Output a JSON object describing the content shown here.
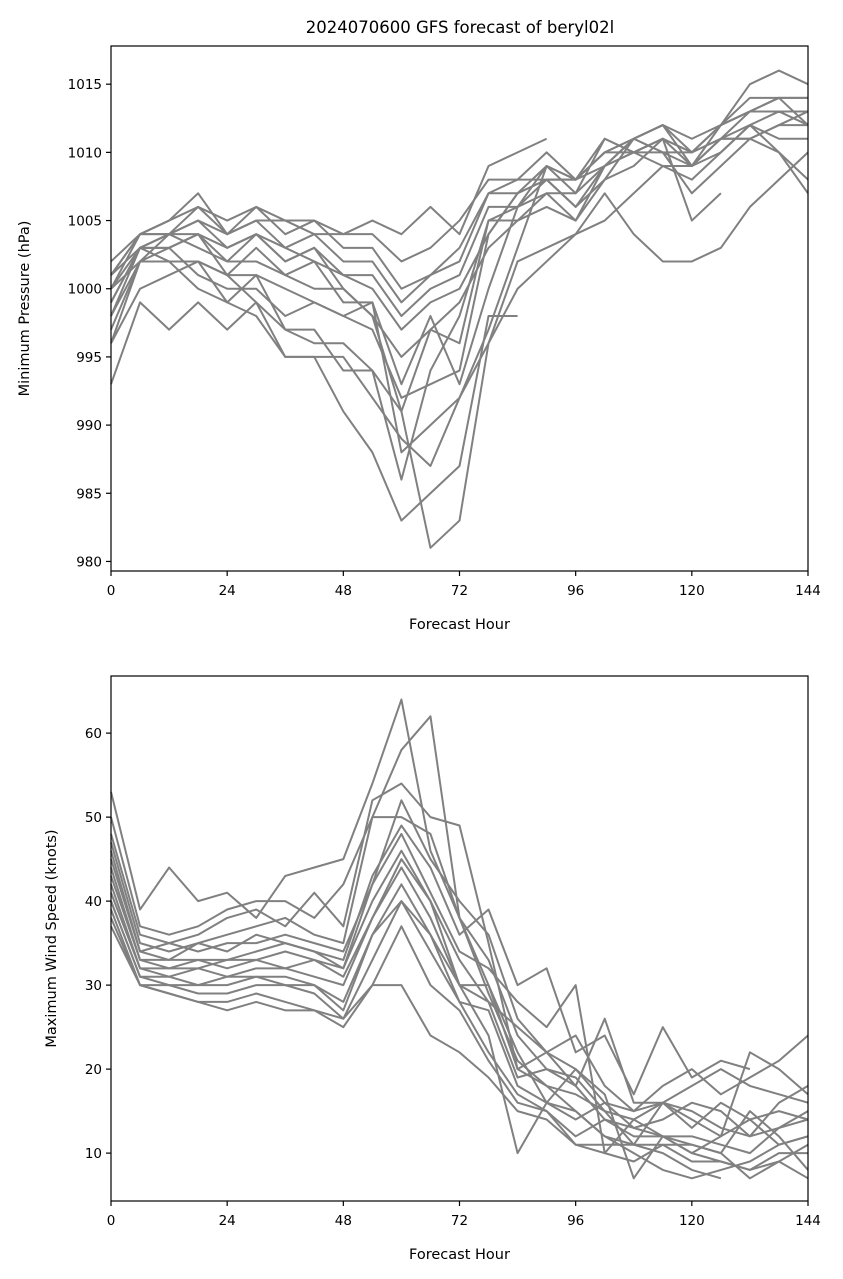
{
  "chart_data": [
    {
      "type": "line",
      "title": "2024070600 GFS forecast of beryl02l",
      "xlabel": "Forecast Hour",
      "ylabel": "Minimum Pressure (hPa)",
      "xlim": [
        0,
        144
      ],
      "ylim": [
        979.3,
        1017.8
      ],
      "xticks": [
        0,
        24,
        48,
        72,
        96,
        120,
        144
      ],
      "yticks": [
        980,
        985,
        990,
        995,
        1000,
        1005,
        1010,
        1015
      ],
      "line_color": "#808080",
      "grid": false,
      "x": [
        0,
        6,
        12,
        18,
        24,
        30,
        36,
        42,
        48,
        54,
        60,
        66,
        72,
        78,
        84,
        90,
        96,
        102,
        108,
        114,
        120,
        126,
        132,
        138,
        144
      ],
      "series": [
        {
          "values": [
            993,
            999,
            997,
            999,
            997,
            999,
            995,
            995,
            991,
            988,
            983,
            985,
            987,
            998,
            998,
            null,
            null,
            null,
            null,
            null,
            null,
            null,
            null,
            null,
            null
          ]
        },
        {
          "values": [
            996,
            1000,
            1001,
            1002,
            1001,
            999,
            997,
            997,
            994,
            994,
            991,
            981,
            983,
            996,
            1002,
            1003,
            1004,
            1005,
            1007,
            1009,
            1009,
            1011,
            1012,
            1011,
            1011
          ]
        },
        {
          "values": [
            996,
            1002,
            1002,
            1000,
            999,
            998,
            995,
            995,
            995,
            992,
            989,
            987,
            992,
            997,
            1003,
            1009,
            1008,
            1010,
            1011,
            1012,
            1010,
            1012,
            1015,
            1016,
            1015
          ]
        },
        {
          "values": [
            997,
            1002,
            1002,
            1002,
            999,
            1001,
            997,
            996,
            996,
            994,
            986,
            994,
            998,
            1005,
            1005,
            1006,
            1005,
            1008,
            1011,
            1012,
            1011,
            1012,
            1013,
            1014,
            1014
          ]
        },
        {
          "values": [
            998,
            1002,
            1003,
            1001,
            1000,
            1000,
            998,
            999,
            998,
            997,
            992,
            993,
            994,
            1004,
            1007,
            1009,
            1007,
            1011,
            1010,
            1011,
            1005,
            1007,
            null,
            null,
            null
          ]
        },
        {
          "values": [
            998,
            1003,
            1002,
            1002,
            1001,
            1001,
            1000,
            999,
            998,
            999,
            988,
            990,
            992,
            996,
            1000,
            1002,
            1004,
            1007,
            1004,
            1002,
            1002,
            1003,
            1006,
            1008,
            1010
          ]
        },
        {
          "values": [
            999,
            1003,
            1003,
            1004,
            1001,
            1003,
            1001,
            1002,
            999,
            999,
            993,
            998,
            993,
            1000,
            1006,
            1008,
            1006,
            1009,
            1010,
            1010,
            1010,
            1011,
            1011,
            1010,
            1008
          ]
        },
        {
          "values": [
            999,
            1003,
            1004,
            1003,
            1002,
            1002,
            1001,
            1000,
            1000,
            998,
            991,
            997,
            999,
            1003,
            1005,
            1007,
            1007,
            1009,
            1010,
            1009,
            1008,
            1010,
            1012,
            1010,
            1007
          ]
        },
        {
          "values": [
            1000,
            1003,
            1003,
            1004,
            1002,
            1004,
            1002,
            1003,
            1000,
            998,
            995,
            997,
            996,
            1005,
            1006,
            1007,
            1005,
            1009,
            1011,
            1010,
            1007,
            1009,
            1011,
            1012,
            1012
          ]
        },
        {
          "values": [
            1000,
            1002,
            1004,
            1004,
            1003,
            1004,
            1003,
            1002,
            1001,
            1000,
            997,
            999,
            1000,
            1004,
            1007,
            1008,
            1006,
            1008,
            1009,
            1011,
            1009,
            1010,
            1012,
            1013,
            1012
          ]
        },
        {
          "values": [
            1000,
            1004,
            1004,
            1005,
            1003,
            1004,
            1002,
            1003,
            1001,
            1001,
            998,
            1000,
            1001,
            1006,
            1006,
            1009,
            1008,
            1010,
            1010,
            1011,
            1010,
            1011,
            1011,
            1012,
            1013
          ]
        },
        {
          "values": [
            1001,
            1003,
            1004,
            1006,
            1004,
            1005,
            1003,
            1004,
            1002,
            1002,
            999,
            1001,
            1002,
            1007,
            1007,
            1008,
            1008,
            1009,
            1011,
            1012,
            1009,
            1011,
            1013,
            1013,
            1013
          ]
        },
        {
          "values": [
            1001,
            1004,
            1005,
            1007,
            1004,
            1006,
            1004,
            1005,
            1003,
            1003,
            1000,
            1001,
            1003,
            1007,
            1008,
            1010,
            1008,
            1011,
            1010,
            1011,
            1010,
            1012,
            1014,
            1014,
            1014
          ]
        },
        {
          "values": [
            1002,
            1004,
            1005,
            1006,
            1005,
            1006,
            1005,
            1005,
            1004,
            1005,
            1004,
            1006,
            1004,
            1009,
            1010,
            1011,
            null,
            null,
            null,
            null,
            null,
            null,
            null,
            null,
            null
          ]
        },
        {
          "values": [
            1001,
            1004,
            1004,
            1005,
            1004,
            1005,
            1005,
            1004,
            1004,
            1004,
            1002,
            1003,
            1005,
            1008,
            1008,
            1008,
            1008,
            1010,
            1011,
            1010,
            1009,
            1012,
            1013,
            1014,
            1012
          ]
        }
      ]
    },
    {
      "type": "line",
      "title": "",
      "xlabel": "Forecast Hour",
      "ylabel": "Maximum Wind Speed (knots)",
      "xlim": [
        0,
        144
      ],
      "ylim": [
        4.3,
        66.8
      ],
      "xticks": [
        0,
        24,
        48,
        72,
        96,
        120,
        144
      ],
      "yticks": [
        10,
        20,
        30,
        40,
        50,
        60
      ],
      "line_color": "#808080",
      "grid": false,
      "x": [
        0,
        6,
        12,
        18,
        24,
        30,
        36,
        42,
        48,
        54,
        60,
        66,
        72,
        78,
        84,
        90,
        96,
        102,
        108,
        114,
        120,
        126,
        132,
        138,
        144
      ],
      "series": [
        {
          "values": [
            53,
            39,
            44,
            40,
            41,
            38,
            43,
            44,
            45,
            54,
            64,
            46,
            38,
            30,
            22,
            16,
            15,
            12,
            11,
            10,
            8,
            7,
            null,
            null,
            null
          ]
        },
        {
          "values": [
            50,
            37,
            36,
            37,
            39,
            40,
            40,
            38,
            42,
            50,
            58,
            62,
            38,
            29,
            21,
            18,
            17,
            15,
            14,
            12,
            10,
            9,
            8,
            9,
            11
          ]
        },
        {
          "values": [
            48,
            36,
            35,
            36,
            38,
            39,
            37,
            41,
            37,
            52,
            54,
            50,
            49,
            35,
            20,
            18,
            15,
            12,
            10,
            8,
            7,
            8,
            9,
            11,
            12
          ]
        },
        {
          "values": [
            47,
            35,
            34,
            35,
            36,
            37,
            38,
            36,
            35,
            50,
            50,
            48,
            38,
            33,
            24,
            20,
            18,
            14,
            12,
            12,
            12,
            11,
            10,
            13,
            14
          ]
        },
        {
          "values": [
            46,
            34,
            35,
            34,
            35,
            35,
            36,
            35,
            34,
            42,
            52,
            45,
            40,
            36,
            26,
            22,
            20,
            16,
            13,
            14,
            16,
            15,
            12,
            16,
            18
          ]
        },
        {
          "values": [
            45,
            34,
            33,
            35,
            34,
            36,
            35,
            34,
            33,
            43,
            49,
            44,
            36,
            39,
            30,
            32,
            22,
            24,
            17,
            25,
            19,
            21,
            20,
            null,
            null
          ]
        },
        {
          "values": [
            44,
            33,
            33,
            33,
            33,
            34,
            35,
            34,
            32,
            42,
            48,
            41,
            34,
            32,
            28,
            25,
            30,
            10,
            14,
            16,
            18,
            20,
            18,
            17,
            16
          ]
        },
        {
          "values": [
            43,
            33,
            32,
            32,
            33,
            33,
            34,
            33,
            32,
            40,
            46,
            40,
            33,
            28,
            25,
            22,
            24,
            18,
            15,
            18,
            20,
            17,
            19,
            21,
            24
          ]
        },
        {
          "values": [
            42,
            32,
            32,
            33,
            32,
            33,
            32,
            33,
            31,
            38,
            45,
            40,
            30,
            30,
            20,
            22,
            18,
            26,
            16,
            16,
            15,
            13,
            12,
            13,
            15
          ]
        },
        {
          "values": [
            41,
            32,
            31,
            32,
            31,
            32,
            32,
            31,
            30,
            38,
            44,
            38,
            30,
            28,
            19,
            20,
            19,
            15,
            11,
            16,
            14,
            12,
            22,
            20,
            17
          ]
        },
        {
          "values": [
            40,
            31,
            31,
            30,
            31,
            31,
            31,
            30,
            28,
            36,
            42,
            36,
            30,
            24,
            10,
            16,
            20,
            17,
            7,
            12,
            11,
            10,
            15,
            12,
            8
          ]
        },
        {
          "values": [
            40,
            31,
            30,
            30,
            30,
            31,
            30,
            30,
            27,
            36,
            40,
            36,
            28,
            27,
            18,
            16,
            14,
            16,
            15,
            16,
            13,
            16,
            14,
            15,
            14
          ]
        },
        {
          "values": [
            39,
            30,
            30,
            29,
            29,
            30,
            30,
            29,
            26,
            33,
            40,
            34,
            28,
            22,
            17,
            15,
            12,
            14,
            13,
            12,
            10,
            12,
            14,
            11,
            12
          ]
        },
        {
          "values": [
            38,
            30,
            29,
            28,
            28,
            29,
            28,
            27,
            26,
            30,
            37,
            30,
            27,
            21,
            16,
            15,
            11,
            11,
            11,
            11,
            9,
            9,
            8,
            10,
            10
          ]
        },
        {
          "values": [
            37,
            30,
            29,
            28,
            27,
            28,
            27,
            27,
            25,
            30,
            30,
            24,
            22,
            19,
            15,
            14,
            11,
            10,
            9,
            11,
            11,
            10,
            7,
            9,
            7
          ]
        }
      ]
    }
  ]
}
